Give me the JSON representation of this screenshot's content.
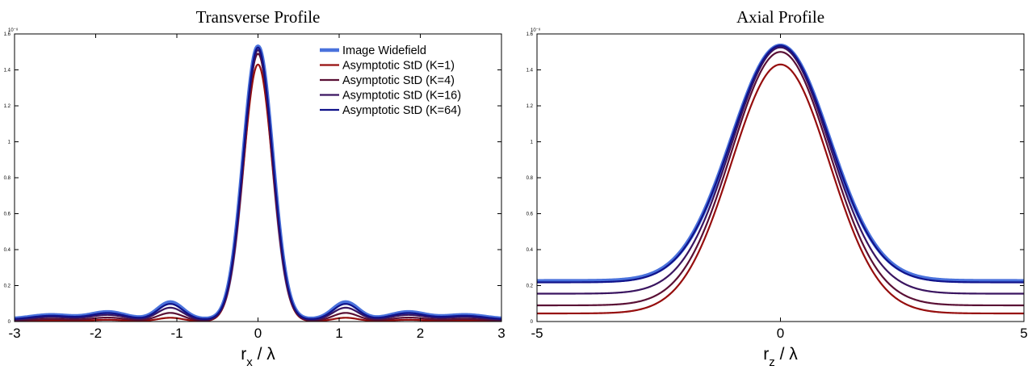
{
  "chart_data": [
    {
      "type": "line",
      "title": "Transverse Profile",
      "xlabel": {
        "main": "r",
        "sub": "x",
        "rest": " / λ"
      },
      "xlim": [
        -3,
        3
      ],
      "ylim": [
        0,
        1.6
      ],
      "y_multiplier": "10⁻⁸",
      "xticks": [
        -3,
        -2,
        -1,
        0,
        1,
        2,
        3
      ],
      "yticks": [
        0,
        0.2,
        0.4,
        0.6,
        0.8,
        1,
        1.2,
        1.4,
        1.6
      ],
      "grid": false,
      "legend": "top-right",
      "series": [
        {
          "name": "Image Widefield",
          "color": "#4a72dc",
          "width": 5,
          "peak": 1.53,
          "side": 0.095,
          "floor": 0.012
        },
        {
          "name": "Asymptotic StD (K=1)",
          "color": "#960e0e",
          "width": 2.2,
          "peak": 1.43,
          "side": 0.02,
          "floor": 0.001
        },
        {
          "name": "Asymptotic StD (K=4)",
          "color": "#5a1035",
          "width": 2.2,
          "peak": 1.49,
          "side": 0.045,
          "floor": 0.003
        },
        {
          "name": "Asymptotic StD (K=16)",
          "color": "#3a1560",
          "width": 2.2,
          "peak": 1.51,
          "side": 0.07,
          "floor": 0.007
        },
        {
          "name": "Asymptotic StD (K=64)",
          "color": "#10128a",
          "width": 2.2,
          "peak": 1.525,
          "side": 0.088,
          "floor": 0.01
        }
      ]
    },
    {
      "type": "line",
      "title": "Axial Profile",
      "xlabel": {
        "main": "r",
        "sub": "z",
        "rest": " / λ"
      },
      "xlim": [
        -5,
        5
      ],
      "ylim": [
        0,
        1.6
      ],
      "y_multiplier": "10⁻⁸",
      "xticks": [
        -5,
        0,
        5
      ],
      "yticks": [
        0,
        0.2,
        0.4,
        0.6,
        0.8,
        1,
        1.2,
        1.4,
        1.6
      ],
      "grid": false,
      "legend": "none",
      "series": [
        {
          "name": "Image Widefield",
          "color": "#4a72dc",
          "width": 5,
          "peak": 1.535,
          "tail": 0.225
        },
        {
          "name": "Asymptotic StD (K=1)",
          "color": "#960e0e",
          "width": 2.2,
          "peak": 1.43,
          "tail": 0.045
        },
        {
          "name": "Asymptotic StD (K=4)",
          "color": "#5a1035",
          "width": 2.2,
          "peak": 1.5,
          "tail": 0.09
        },
        {
          "name": "Asymptotic StD (K=16)",
          "color": "#3a1560",
          "width": 2.2,
          "peak": 1.525,
          "tail": 0.155
        },
        {
          "name": "Asymptotic StD (K=64)",
          "color": "#10128a",
          "width": 2.2,
          "peak": 1.535,
          "tail": 0.218
        }
      ]
    }
  ]
}
